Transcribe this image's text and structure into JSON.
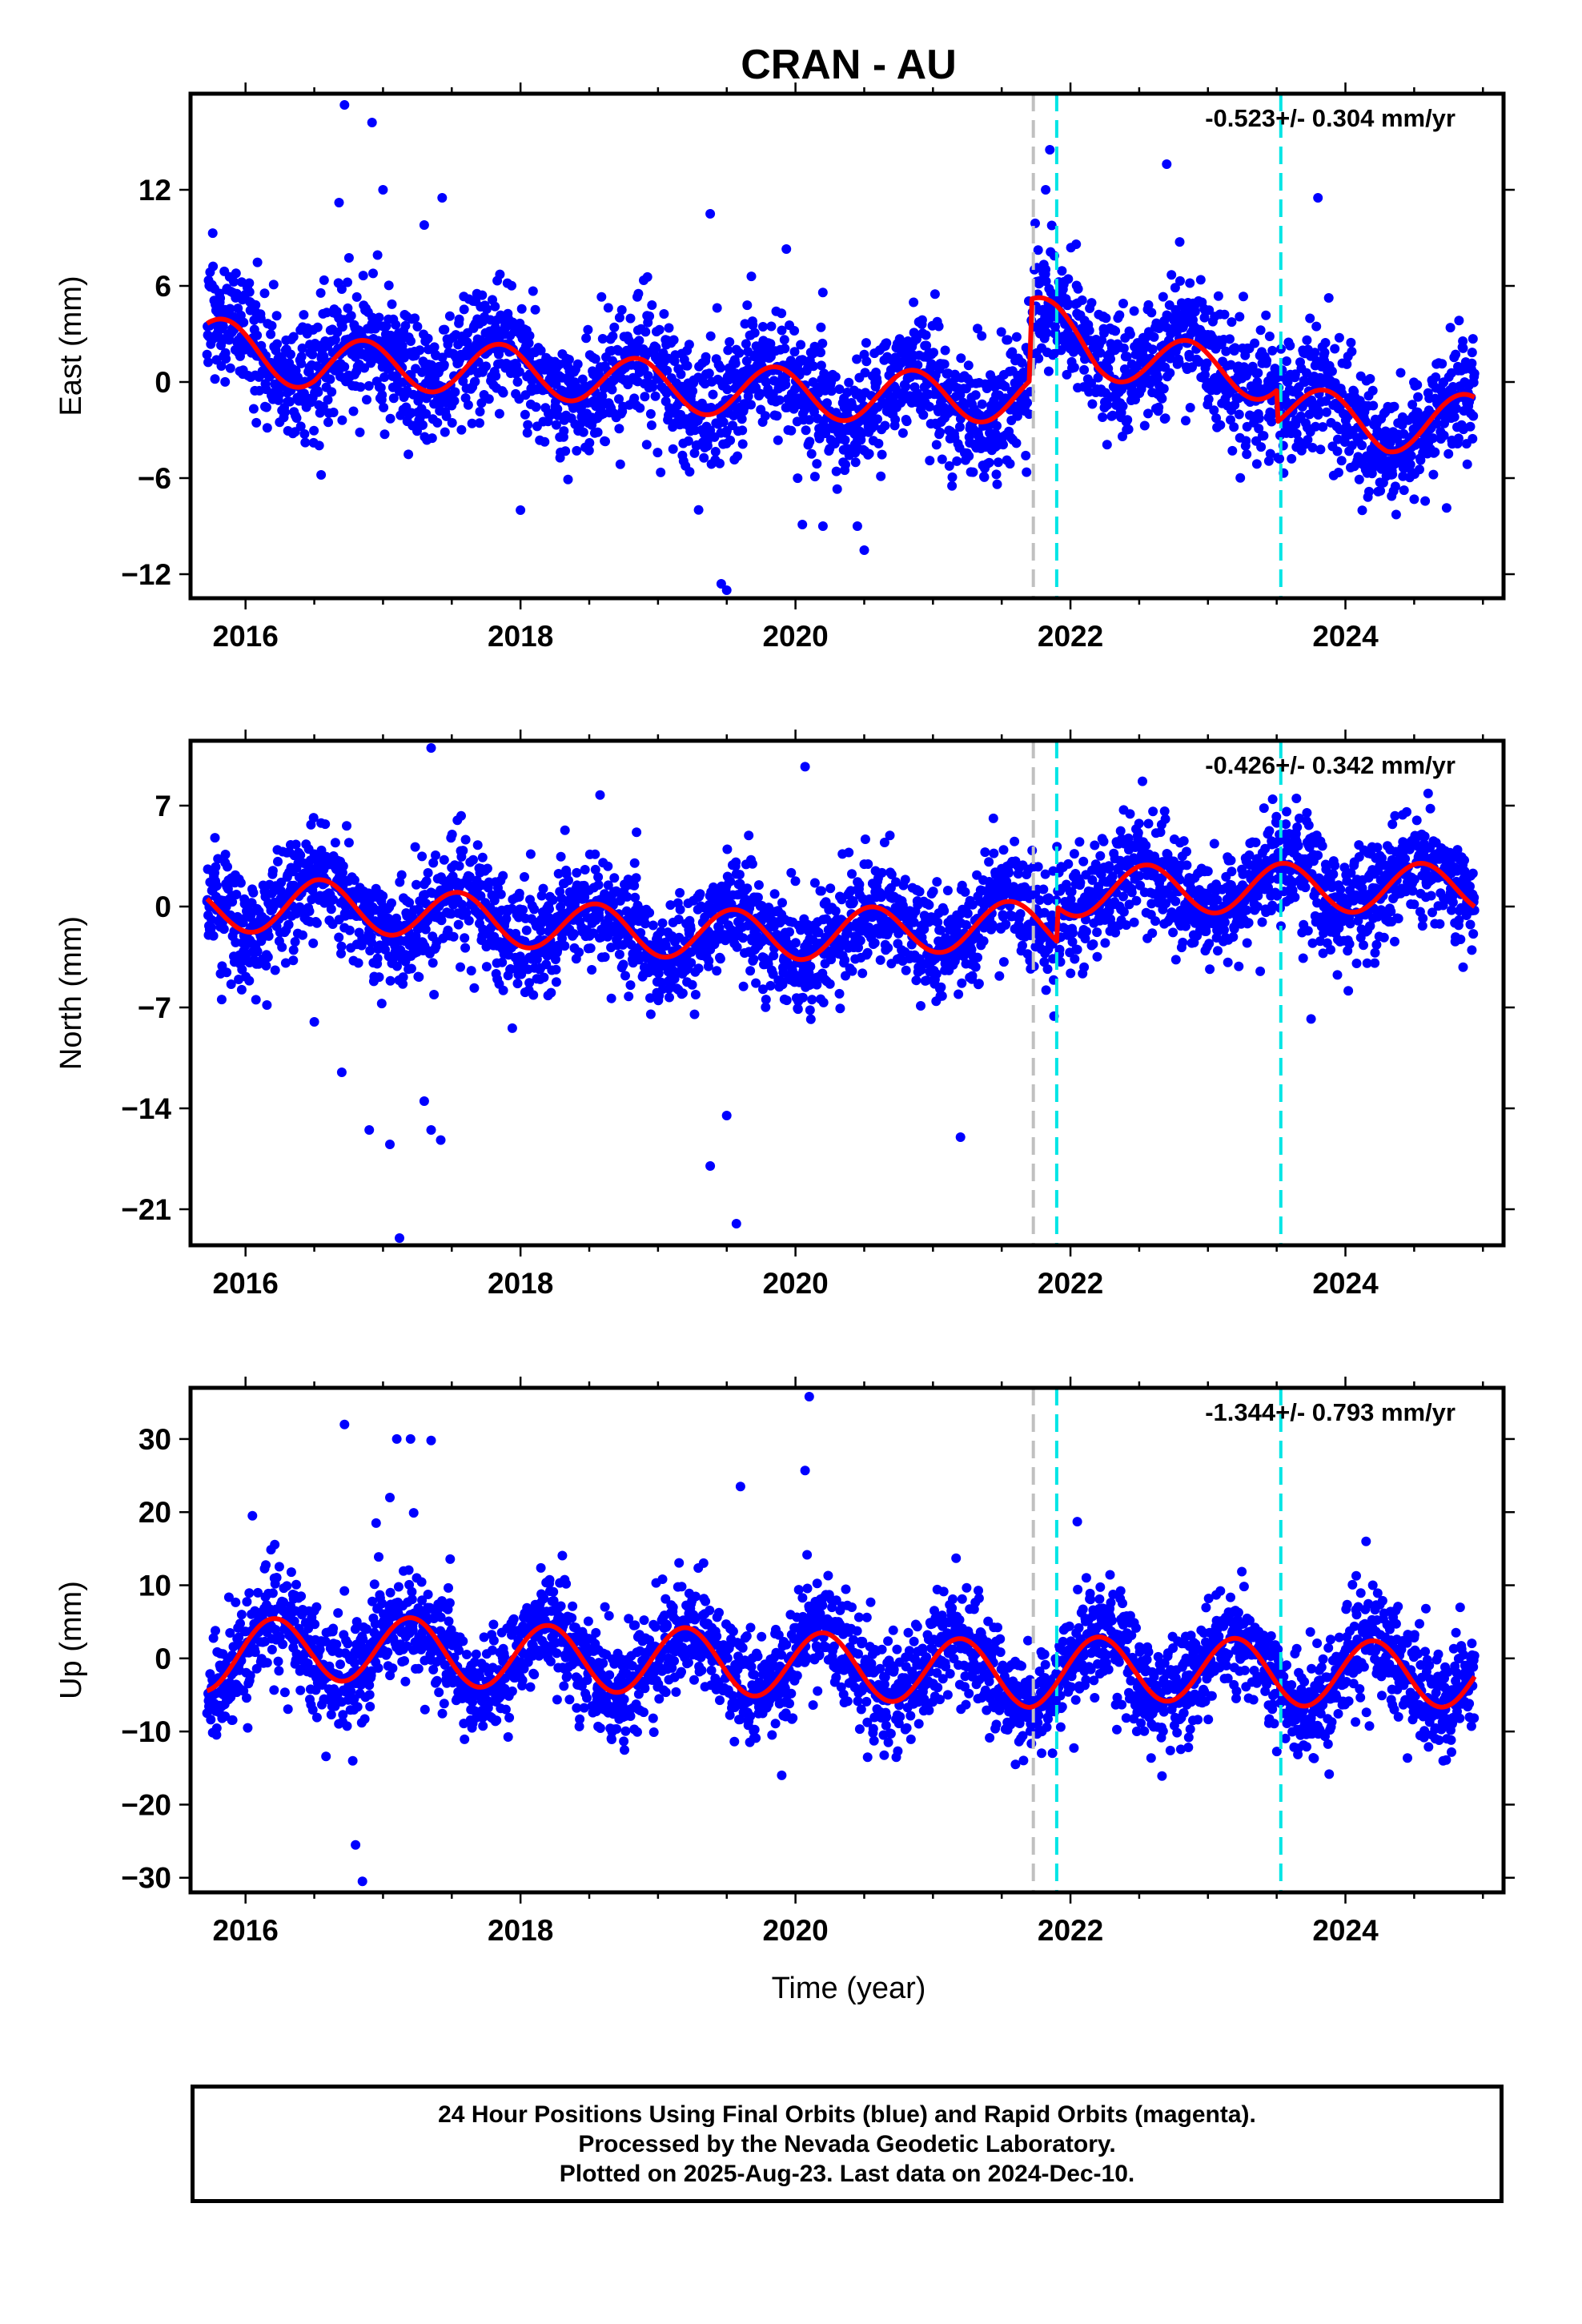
{
  "colors": {
    "final_orbits": "#0000ff",
    "model": "#ff0000",
    "equipment_change": "#c0c0c0",
    "earthquake": "#00e5e5"
  },
  "chart_data": [
    {
      "type": "scatter",
      "title": "CRAN - AU",
      "ylabel": "East (mm)",
      "rate_text": "-0.523+/- 0.304 mm/yr",
      "xlim": [
        2015.6,
        2025.15
      ],
      "ylim": [
        -13.5,
        18
      ],
      "xticks": [
        2016,
        2018,
        2020,
        2022,
        2024
      ],
      "yticks": [
        -12,
        -6,
        0,
        6,
        12
      ],
      "ytick_labels": [
        "−12",
        "−6",
        "0",
        "6",
        "12"
      ],
      "seasonal_amplitude": 1.6,
      "seasonal_phase": 2016.85,
      "noise_sd": 1.9,
      "model_trend": [
        [
          2015.7,
          2.6
        ],
        [
          2016.5,
          1.0
        ],
        [
          2017.3,
          1.0
        ],
        [
          2018.2,
          0.6
        ],
        [
          2019.0,
          -0.3
        ],
        [
          2020.2,
          -0.8
        ],
        [
          2021.2,
          -0.9
        ],
        [
          2021.7,
          -0.9
        ],
        [
          2021.72,
          4.1
        ],
        [
          2022.2,
          1.8
        ],
        [
          2023.0,
          0.8
        ],
        [
          2023.5,
          0.4
        ],
        [
          2023.51,
          -1.6
        ],
        [
          2024.3,
          -2.8
        ],
        [
          2024.95,
          -2.3
        ]
      ],
      "outliers": [
        [
          2016.72,
          17.3
        ],
        [
          2016.92,
          16.2
        ],
        [
          2017.0,
          12.0
        ],
        [
          2019.38,
          10.5
        ],
        [
          2019.5,
          -13.0
        ],
        [
          2019.46,
          -12.6
        ],
        [
          2020.05,
          -8.9
        ],
        [
          2020.2,
          -9.0
        ],
        [
          2020.5,
          -10.5
        ],
        [
          2020.45,
          -9.0
        ],
        [
          2017.43,
          11.5
        ],
        [
          2017.3,
          9.8
        ],
        [
          2016.68,
          11.2
        ],
        [
          2021.82,
          12.0
        ],
        [
          2021.85,
          14.5
        ],
        [
          2022.7,
          13.6
        ],
        [
          2016.55,
          -5.8
        ],
        [
          2018.0,
          -8.0
        ],
        [
          2023.8,
          11.5
        ]
      ],
      "equipment_changes": [
        2021.73
      ],
      "earthquakes": [
        2021.9,
        2023.53
      ]
    },
    {
      "type": "scatter",
      "title": "",
      "ylabel": "North (mm)",
      "rate_text": "-0.426+/- 0.342 mm/yr",
      "xlim": [
        2015.6,
        2025.15
      ],
      "ylim": [
        -23.5,
        11.5
      ],
      "xticks": [
        2016,
        2018,
        2020,
        2022,
        2024
      ],
      "yticks": [
        -21,
        -14,
        -7,
        0,
        7
      ],
      "ytick_labels": [
        "−21",
        "−14",
        "−7",
        "0",
        "7"
      ],
      "seasonal_amplitude": 1.7,
      "seasonal_phase": 2016.55,
      "noise_sd": 1.9,
      "model_trend": [
        [
          2015.7,
          -0.3
        ],
        [
          2016.5,
          0.2
        ],
        [
          2017.3,
          -0.5
        ],
        [
          2018.2,
          -1.3
        ],
        [
          2019.0,
          -1.8
        ],
        [
          2020.0,
          -2.0
        ],
        [
          2021.0,
          -1.5
        ],
        [
          2021.7,
          -1.3
        ],
        [
          2021.9,
          -1.4
        ],
        [
          2021.91,
          1.0
        ],
        [
          2022.6,
          1.2
        ],
        [
          2023.5,
          1.3
        ],
        [
          2024.95,
          1.3
        ]
      ],
      "outliers": [
        [
          2016.9,
          -15.5
        ],
        [
          2017.05,
          -16.5
        ],
        [
          2017.12,
          -23.0
        ],
        [
          2017.3,
          -13.5
        ],
        [
          2017.35,
          -15.5
        ],
        [
          2017.42,
          -16.2
        ],
        [
          2017.35,
          11.0
        ],
        [
          2019.38,
          -18.0
        ],
        [
          2019.57,
          -22.0
        ],
        [
          2020.07,
          9.7
        ],
        [
          2021.2,
          -16.0
        ],
        [
          2016.5,
          -8.0
        ],
        [
          2016.7,
          -11.5
        ],
        [
          2019.5,
          -14.5
        ],
        [
          2023.75,
          -7.8
        ]
      ],
      "equipment_changes": [
        2021.73
      ],
      "earthquakes": [
        2021.9,
        2023.53
      ]
    },
    {
      "type": "scatter",
      "title": "",
      "ylabel": "Up (mm)",
      "xlabel": "Time (year)",
      "rate_text": "-1.344+/- 0.793 mm/yr",
      "xlim": [
        2015.6,
        2025.15
      ],
      "ylim": [
        -32,
        37
      ],
      "xticks": [
        2016,
        2018,
        2020,
        2022,
        2024
      ],
      "yticks": [
        -30,
        -20,
        -10,
        0,
        10,
        20,
        30
      ],
      "ytick_labels": [
        "−30",
        "−20",
        "−10",
        "0",
        "10",
        "20",
        "30"
      ],
      "seasonal_amplitude": 4.5,
      "seasonal_phase": 2016.2,
      "noise_sd": 3.6,
      "model_trend": [
        [
          2015.7,
          0.0
        ],
        [
          2016.5,
          1.5
        ],
        [
          2017.3,
          1.0
        ],
        [
          2018.2,
          0.0
        ],
        [
          2019.2,
          -0.3
        ],
        [
          2020.2,
          -1.0
        ],
        [
          2021.2,
          -1.8
        ],
        [
          2021.7,
          -2.2
        ],
        [
          2022.5,
          -1.2
        ],
        [
          2023.5,
          -2.0
        ],
        [
          2024.95,
          -2.2
        ]
      ],
      "outliers": [
        [
          2016.72,
          32.0
        ],
        [
          2017.1,
          30.0
        ],
        [
          2017.2,
          30.0
        ],
        [
          2017.35,
          29.8
        ],
        [
          2016.8,
          -25.5
        ],
        [
          2016.85,
          -30.5
        ],
        [
          2020.1,
          35.8
        ],
        [
          2020.07,
          25.7
        ],
        [
          2019.6,
          23.5
        ],
        [
          2017.05,
          22.0
        ],
        [
          2016.95,
          18.5
        ],
        [
          2016.05,
          19.5
        ],
        [
          2022.05,
          18.7
        ],
        [
          2024.15,
          16.0
        ],
        [
          2016.78,
          -14.0
        ],
        [
          2019.9,
          -16.0
        ],
        [
          2021.6,
          -14.5
        ]
      ],
      "equipment_changes": [
        2021.73
      ],
      "earthquakes": [
        2021.9,
        2023.53
      ]
    }
  ],
  "footer": {
    "line1": "24 Hour Positions Using Final Orbits (blue) and Rapid Orbits (magenta).",
    "line2": "Processed by the Nevada Geodetic Laboratory.",
    "line3": "Plotted on 2025-Aug-23. Last data on 2024-Dec-10."
  }
}
